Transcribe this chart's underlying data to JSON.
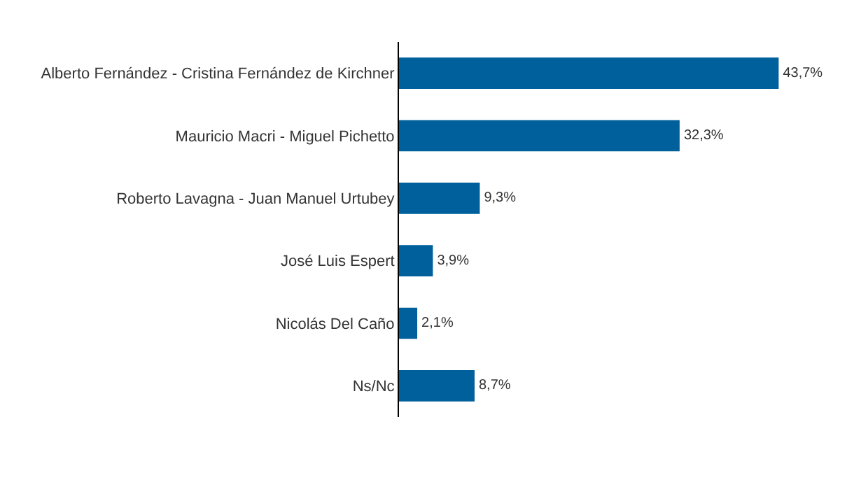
{
  "chart_data": {
    "type": "bar",
    "orientation": "horizontal",
    "categories": [
      "Alberto Fernández - Cristina Fernández de Kirchner",
      "Mauricio Macri - Miguel Pichetto",
      "Roberto Lavagna - Juan Manuel Urtubey",
      "José Luis Espert",
      "Nicolás Del Caño",
      "Ns/Nc"
    ],
    "values": [
      43.7,
      32.3,
      9.3,
      3.9,
      2.1,
      8.7
    ],
    "value_labels": [
      "43,7%",
      "32,3%",
      "9,3%",
      "3,9%",
      "2,1%",
      "8,7%"
    ],
    "color": "#00609c",
    "tick_labels": "y"
  }
}
